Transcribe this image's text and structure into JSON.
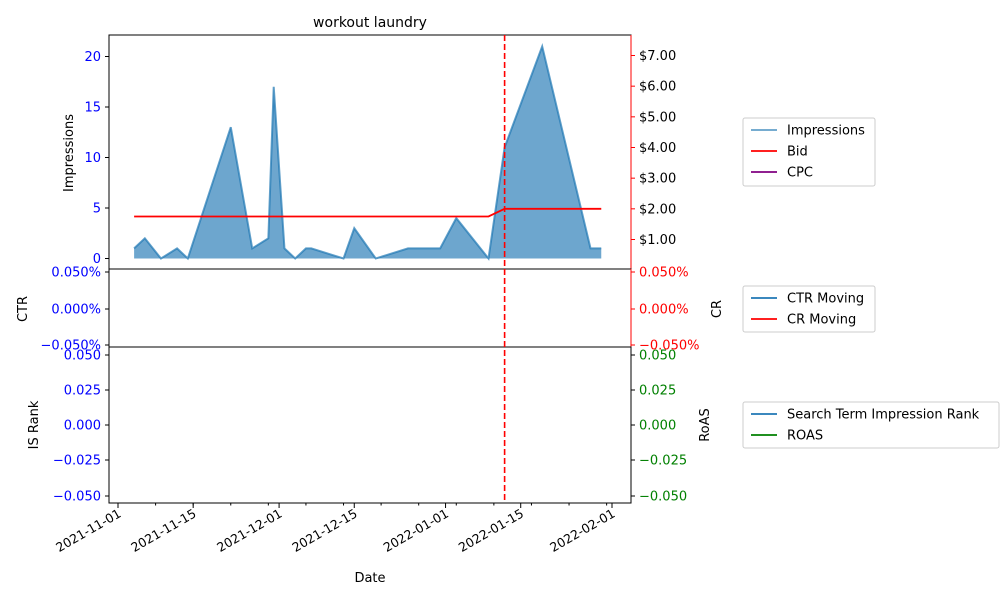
{
  "colors": {
    "impressions": "#1f77b4",
    "bid": "#ff0000",
    "cpc": "#800080",
    "ctr": "#1f77b4",
    "cr": "#ff0000",
    "rank": "#1f77b4",
    "roas": "#008000",
    "left_tick": "#0000ff",
    "cr_tick": "#ff0000",
    "roas_tick": "#008000",
    "vline": "#ff0000"
  },
  "chart_data": [
    {
      "type": "area",
      "title": "workout laundry",
      "ylabel": "Impressions",
      "ylim": [
        0,
        22
      ],
      "y_ticks": [
        "0",
        "5",
        "10",
        "15",
        "20"
      ],
      "y_tick_values": [
        0,
        5,
        10,
        15,
        20
      ],
      "y2_ticks": [
        "$1.00",
        "$2.00",
        "$3.00",
        "$4.00",
        "$5.00",
        "$6.00",
        "$7.00"
      ],
      "y2_tick_values": [
        1,
        2,
        3,
        4,
        5,
        6,
        7
      ],
      "y2lim": [
        0,
        7.65
      ],
      "vline_date": "2022-01-12",
      "series": [
        {
          "name": "Impressions",
          "x": [
            "2021-11-04",
            "2021-11-06",
            "2021-11-09",
            "2021-11-12",
            "2021-11-14",
            "2021-11-22",
            "2021-11-26",
            "2021-11-29",
            "2021-11-30",
            "2021-12-02",
            "2021-12-04",
            "2021-12-06",
            "2021-12-07",
            "2021-12-13",
            "2021-12-15",
            "2021-12-19",
            "2021-12-25",
            "2021-12-31",
            "2022-01-03",
            "2022-01-09",
            "2022-01-12",
            "2022-01-19",
            "2022-01-28",
            "2022-01-30"
          ],
          "values": [
            1,
            2,
            0,
            1,
            0,
            13,
            1,
            2,
            17,
            1,
            0,
            1,
            1,
            0,
            3,
            0,
            1,
            1,
            4,
            0,
            11,
            21,
            1,
            1
          ]
        },
        {
          "name": "Bid",
          "x": [
            "2021-11-04",
            "2022-01-09",
            "2022-01-12",
            "2022-01-30"
          ],
          "values": [
            1.75,
            1.75,
            2.0,
            2.0
          ]
        },
        {
          "name": "CPC",
          "x": [],
          "values": []
        }
      ]
    },
    {
      "type": "line",
      "ylabel": "CTR",
      "y2label": "CR",
      "y_ticks": [
        "0.050%",
        "0.000%",
        "−0.050%"
      ],
      "y2_ticks": [
        "0.050%",
        "0.000%",
        "−0.050%"
      ],
      "ylim": [
        -0.05,
        0.05
      ],
      "series": [
        {
          "name": "CTR Moving",
          "values": []
        },
        {
          "name": "CR Moving",
          "values": []
        }
      ]
    },
    {
      "type": "line",
      "xlabel": "Date",
      "ylabel": "IS Rank",
      "y2label": "RoAS",
      "y_ticks": [
        "0.050",
        "0.025",
        "0.000",
        "−0.025",
        "−0.050"
      ],
      "y2_ticks": [
        "0.050",
        "0.025",
        "0.000",
        "−0.025",
        "−0.050"
      ],
      "ylim": [
        -0.055,
        0.055
      ],
      "x_ticks": [
        "2021-11-01",
        "2021-11-15",
        "2021-12-01",
        "2021-12-15",
        "2022-01-01",
        "2022-01-15",
        "2022-02-01"
      ],
      "series": [
        {
          "name": "Search Term Impression Rank",
          "values": []
        },
        {
          "name": "ROAS",
          "values": []
        }
      ]
    }
  ],
  "legends": [
    {
      "items": [
        {
          "label": "Impressions",
          "color": "#1f77b4",
          "style": "area"
        },
        {
          "label": "Bid",
          "color": "#ff0000",
          "style": "line"
        },
        {
          "label": "CPC",
          "color": "#800080",
          "style": "line"
        }
      ]
    },
    {
      "items": [
        {
          "label": "CTR Moving",
          "color": "#1f77b4",
          "style": "line"
        },
        {
          "label": "CR Moving",
          "color": "#ff0000",
          "style": "line"
        }
      ]
    },
    {
      "items": [
        {
          "label": "Search Term Impression Rank",
          "color": "#1f77b4",
          "style": "line"
        },
        {
          "label": "ROAS",
          "color": "#008000",
          "style": "line"
        }
      ]
    }
  ]
}
